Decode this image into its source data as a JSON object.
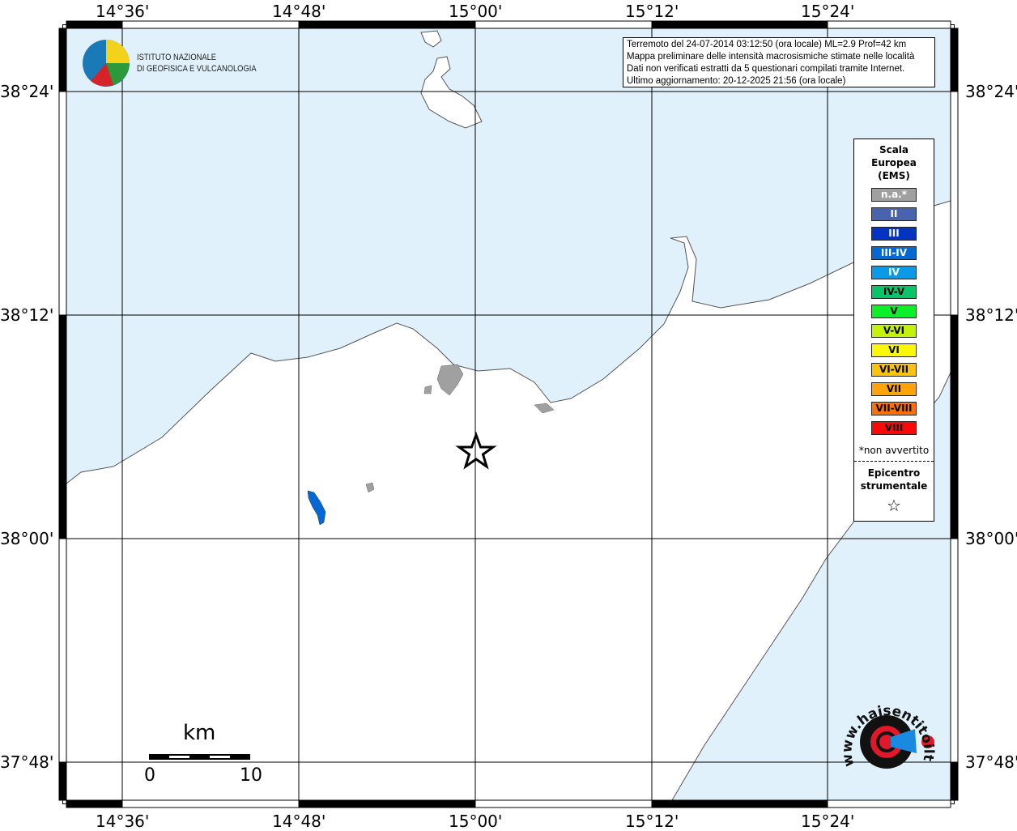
{
  "axes": {
    "lon_labels": [
      "14°36'",
      "14°48'",
      "15°00'",
      "15°12'",
      "15°24'"
    ],
    "lat_labels": [
      "38°24'",
      "38°12'",
      "38°00'",
      "37°48'"
    ]
  },
  "info": {
    "lines": [
      "Terremoto del 24-07-2014 03:12:50 (ora locale) ML=2.9 Prof=42 km",
      "Mappa preliminare delle intensità macrosismiche stimate nelle località",
      "Dati non verificati estratti da 5 questionari compilati tramite Internet.",
      "Ultimo aggiornamento: 20-12-2025 21:56 (ora locale)"
    ]
  },
  "legend": {
    "title": [
      "Scala",
      "Europea",
      "(EMS)"
    ],
    "items": [
      {
        "label": "n.a.*",
        "color": "#a0a0a0",
        "text": "#fff"
      },
      {
        "label": "II",
        "color": "#4a63ad",
        "text": "#fff"
      },
      {
        "label": "III",
        "color": "#0433c2",
        "text": "#fff"
      },
      {
        "label": "III-IV",
        "color": "#0468d4",
        "text": "#fff"
      },
      {
        "label": "IV",
        "color": "#0a9ae6",
        "text": "#fff"
      },
      {
        "label": "IV-V",
        "color": "#0ac46a",
        "text": "#000"
      },
      {
        "label": "V",
        "color": "#0cf02c",
        "text": "#000"
      },
      {
        "label": "V-VI",
        "color": "#c4f20a",
        "text": "#000"
      },
      {
        "label": "VI",
        "color": "#f8f808",
        "text": "#000"
      },
      {
        "label": "VI-VII",
        "color": "#fcc408",
        "text": "#000"
      },
      {
        "label": "VII",
        "color": "#fca408",
        "text": "#000"
      },
      {
        "label": "VII-VIII",
        "color": "#fc7004",
        "text": "#000"
      },
      {
        "label": "VIII",
        "color": "#fc0808",
        "text": "#000"
      }
    ],
    "note": "*non avvertito",
    "epicenter_label": [
      "Epicentro",
      "strumentale"
    ],
    "epicenter_icon": "star-outline"
  },
  "scale_bar": {
    "unit": "km",
    "min": "0",
    "max": "10"
  },
  "logos": {
    "ingv": [
      "ISTITUTO NAZIONALE",
      "DI GEOFISICA E VULCANOLOGIA"
    ],
    "hsit": "www.haisentitoilterremoto.it"
  },
  "colors": {
    "sea": "#e1f1fc",
    "land": "#ffffff",
    "grid": "#000000"
  }
}
